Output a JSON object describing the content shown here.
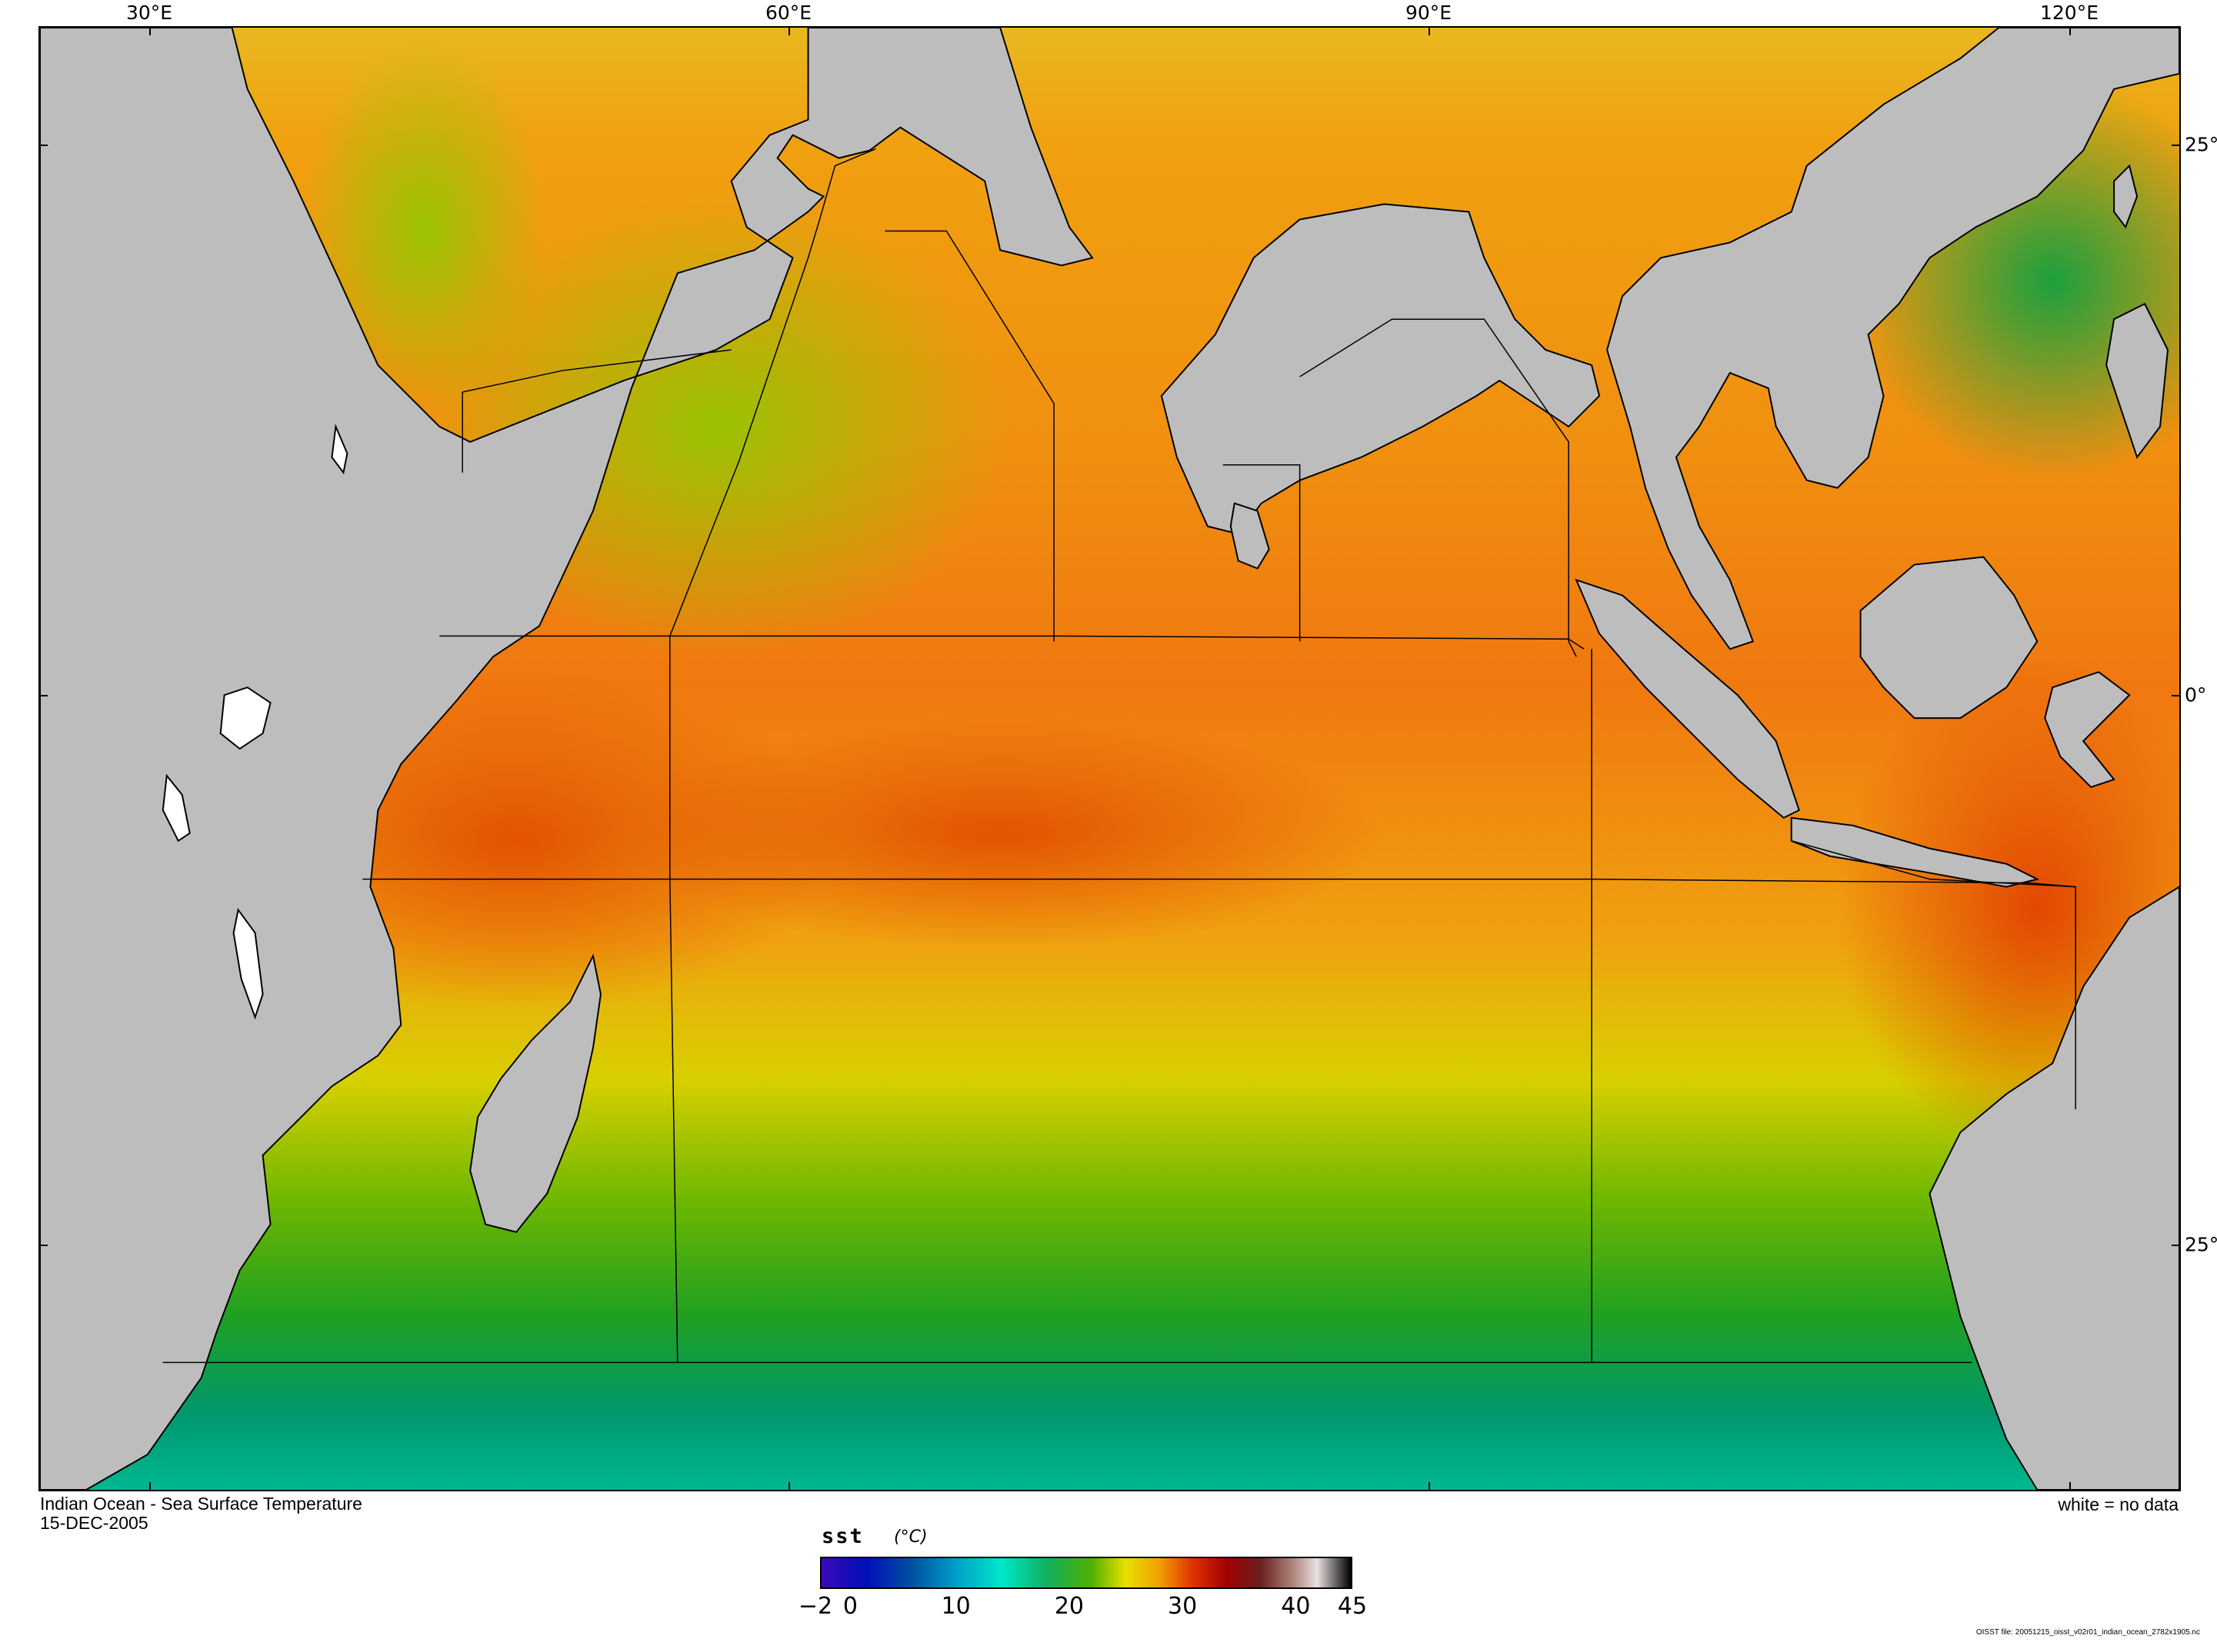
{
  "map": {
    "title": "Indian Ocean - Sea Surface Temperature",
    "date": "15-DEC-2005",
    "no_data_note": "white = no data",
    "lon_ticks": [
      "30°E",
      "60°E",
      "90°E",
      "120°E"
    ],
    "lat_ticks": [
      "25°",
      "0°",
      "25°"
    ],
    "land_color": "#bdbdbd",
    "no_data_color": "#ffffff"
  },
  "legend": {
    "variable": "sst",
    "unit": "(°C)",
    "tick_labels": [
      "−2",
      "0",
      "10",
      "20",
      "30",
      "40",
      "45"
    ],
    "tick_values": [
      -2,
      0,
      10,
      20,
      30,
      40,
      45
    ],
    "range": [
      -2,
      45
    ],
    "colors": [
      {
        "value": -2,
        "color": "#3a0ab8"
      },
      {
        "value": 2,
        "color": "#0010b8"
      },
      {
        "value": 6,
        "color": "#0050a0"
      },
      {
        "value": 10,
        "color": "#00a0c8"
      },
      {
        "value": 14,
        "color": "#00e8c8"
      },
      {
        "value": 18,
        "color": "#10b060"
      },
      {
        "value": 22,
        "color": "#50b000"
      },
      {
        "value": 25,
        "color": "#e8e000"
      },
      {
        "value": 28,
        "color": "#f0a000"
      },
      {
        "value": 31,
        "color": "#e03000"
      },
      {
        "value": 34,
        "color": "#a00000"
      },
      {
        "value": 37,
        "color": "#6a2020"
      },
      {
        "value": 40,
        "color": "#b08a80"
      },
      {
        "value": 42,
        "color": "#e8e0e0"
      },
      {
        "value": 45,
        "color": "#000000"
      }
    ]
  },
  "footer": {
    "file_note": "OISST file: 20051215_oisst_v02r01_indian_ocean_2782x1905.nc"
  }
}
